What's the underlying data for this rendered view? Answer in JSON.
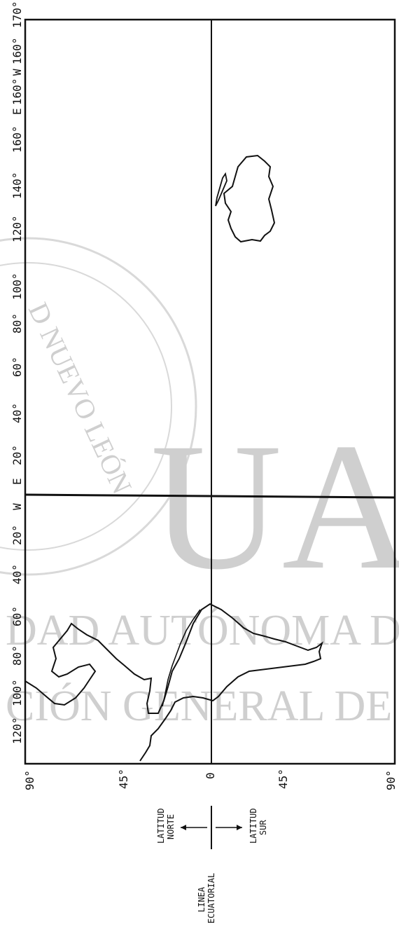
{
  "map": {
    "longitude_ticks": [
      "120°",
      "100°",
      "80°",
      "60°",
      "40°",
      "20°",
      "W",
      "E",
      "20°",
      "40°",
      "60°",
      "80°",
      "100°",
      "120°",
      "140°",
      "160°",
      "E",
      "160°",
      "W",
      "160°",
      "170°"
    ],
    "latitude_ticks": [
      "90°",
      "45°",
      "0",
      "45°",
      "90°"
    ],
    "legend": {
      "north_label_line1": "LATITUD",
      "north_label_line2": "NORTE",
      "south_label_line1": "LATITUD",
      "south_label_line2": "SUR",
      "equator_label_line1": "LINEA",
      "equator_label_line2": "ECUATORIAL"
    }
  },
  "watermark": {
    "big_letters": "UA",
    "line1": "DAD AUTÓNOMA DE",
    "line2": "CIÓN GENERAL DE BIB",
    "seal_text": "D NUEVO LEÓN"
  },
  "colors": {
    "ink": "#111111",
    "watermark": "#cfcfcf",
    "background": "#ffffff"
  }
}
